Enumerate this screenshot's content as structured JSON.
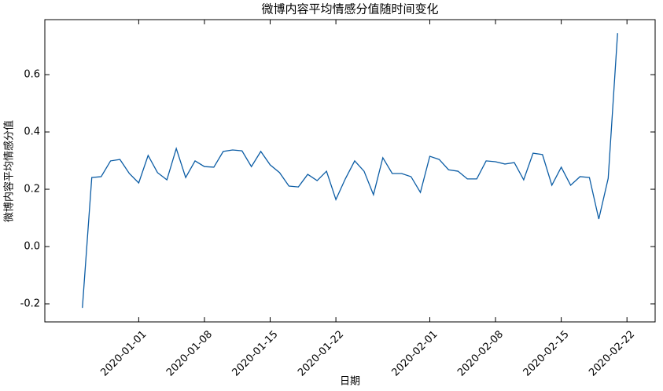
{
  "chart_data": {
    "type": "line",
    "title": "微博内容平均情感分值随时间变化",
    "xlabel": "日期",
    "ylabel": "微博内容平均情感分值",
    "x": [
      "2019-12-26",
      "2019-12-27",
      "2019-12-28",
      "2019-12-29",
      "2019-12-30",
      "2019-12-31",
      "2020-01-01",
      "2020-01-02",
      "2020-01-03",
      "2020-01-04",
      "2020-01-05",
      "2020-01-06",
      "2020-01-07",
      "2020-01-08",
      "2020-01-09",
      "2020-01-10",
      "2020-01-11",
      "2020-01-12",
      "2020-01-13",
      "2020-01-14",
      "2020-01-15",
      "2020-01-16",
      "2020-01-17",
      "2020-01-18",
      "2020-01-19",
      "2020-01-20",
      "2020-01-21",
      "2020-01-22",
      "2020-01-23",
      "2020-01-24",
      "2020-01-25",
      "2020-01-26",
      "2020-01-27",
      "2020-01-28",
      "2020-01-29",
      "2020-01-30",
      "2020-01-31",
      "2020-02-01",
      "2020-02-02",
      "2020-02-03",
      "2020-02-04",
      "2020-02-05",
      "2020-02-06",
      "2020-02-07",
      "2020-02-08",
      "2020-02-09",
      "2020-02-10",
      "2020-02-11",
      "2020-02-12",
      "2020-02-13",
      "2020-02-14",
      "2020-02-15",
      "2020-02-16",
      "2020-02-17",
      "2020-02-18",
      "2020-02-19",
      "2020-02-20",
      "2020-02-21"
    ],
    "series": [
      {
        "color": "#0c5da5",
        "values": [
          -0.214,
          0.241,
          0.244,
          0.299,
          0.304,
          0.255,
          0.222,
          0.318,
          0.258,
          0.233,
          0.342,
          0.241,
          0.299,
          0.279,
          0.277,
          0.332,
          0.337,
          0.334,
          0.279,
          0.332,
          0.285,
          0.258,
          0.211,
          0.208,
          0.252,
          0.23,
          0.263,
          0.164,
          0.236,
          0.299,
          0.263,
          0.181,
          0.31,
          0.255,
          0.255,
          0.244,
          0.189,
          0.315,
          0.304,
          0.268,
          0.263,
          0.236,
          0.236,
          0.299,
          0.296,
          0.288,
          0.293,
          0.233,
          0.326,
          0.321,
          0.214,
          0.277,
          0.214,
          0.244,
          0.241,
          0.096,
          0.238,
          0.745
        ]
      }
    ],
    "xlim": [
      "2019-12-22",
      "2020-02-25"
    ],
    "xticks": [
      "2020-01-01",
      "2020-01-08",
      "2020-01-15",
      "2020-01-22",
      "2020-02-01",
      "2020-02-08",
      "2020-02-15",
      "2020-02-22"
    ],
    "ylim": [
      -0.263,
      0.792
    ],
    "yticks": [
      {
        "value": -0.2,
        "label": "-0.2"
      },
      {
        "value": 0,
        "label": "0.0"
      },
      {
        "value": 0.2,
        "label": "0.2"
      },
      {
        "value": 0.4,
        "label": "0.4"
      },
      {
        "value": 0.6,
        "label": "0.6"
      }
    ]
  }
}
